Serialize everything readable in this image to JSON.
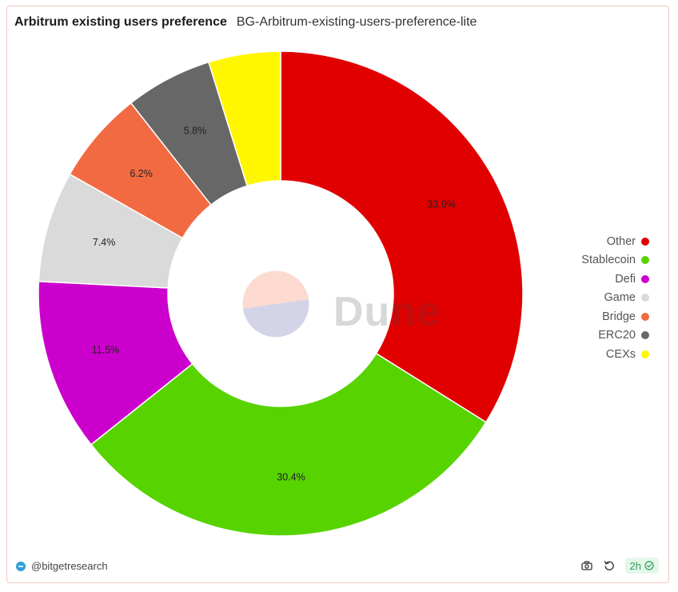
{
  "header": {
    "title": "Arbitrum existing users preference",
    "subtitle": "BG-Arbitrum-existing-users-preference-lite"
  },
  "chart_data": {
    "type": "pie",
    "donut": true,
    "slices": [
      {
        "name": "Other",
        "value": 33.9,
        "label": "33.9%",
        "color": "#e00000"
      },
      {
        "name": "Stablecoin",
        "value": 30.4,
        "label": "30.4%",
        "color": "#57d300"
      },
      {
        "name": "Defi",
        "value": 11.5,
        "label": "11.5%",
        "color": "#cc00cc"
      },
      {
        "name": "Game",
        "value": 7.4,
        "label": "7.4%",
        "color": "#dadada"
      },
      {
        "name": "Bridge",
        "value": 6.2,
        "label": "6.2%",
        "color": "#f26a42"
      },
      {
        "name": "ERC20",
        "value": 5.8,
        "label": "5.8%",
        "color": "#676767"
      },
      {
        "name": "CEXs",
        "value": 4.8,
        "label": "",
        "color": "#fff700"
      }
    ],
    "legend_position": "right"
  },
  "watermark": {
    "text": "Dune"
  },
  "footer": {
    "author": "@bitgetresearch",
    "refresh_badge": "2h"
  },
  "icons": {
    "camera": "camera-icon",
    "refresh": "refresh-icon",
    "check": "check-circle-icon"
  }
}
